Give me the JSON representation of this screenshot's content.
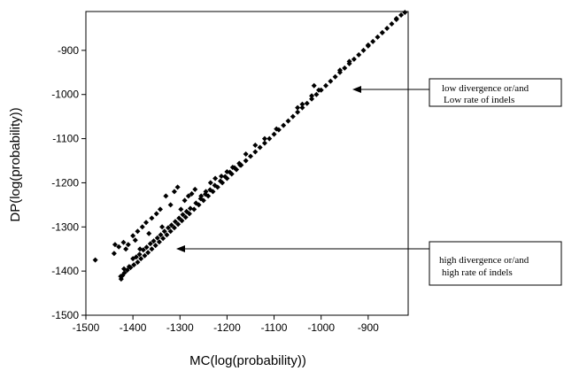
{
  "chart_data": {
    "type": "scatter",
    "xlabel": "MC(log(probability))",
    "ylabel": "DP(log(probability))",
    "xlim": [
      -1500,
      -815
    ],
    "ylim": [
      -1500,
      -812
    ],
    "x_ticks": [
      -1500,
      -1400,
      -1300,
      -1200,
      -1100,
      -1000,
      -900
    ],
    "x_tick_labels": [
      "-1500",
      "-1400",
      "-1300",
      "-1200",
      "-1100",
      "-1000",
      "-900"
    ],
    "y_ticks": [
      -1500,
      -1400,
      -1300,
      -1200,
      -1100,
      -1000,
      -900
    ],
    "y_tick_labels": [
      "-1500",
      "-1400",
      "-1300",
      "-1200",
      "-1100",
      "-1000",
      "-900"
    ],
    "grid": false,
    "marker": "diamond",
    "points": [
      [
        -1425,
        -1418
      ],
      [
        -1422,
        -1410
      ],
      [
        -1418,
        -1404
      ],
      [
        -1412,
        -1398
      ],
      [
        -1405,
        -1392
      ],
      [
        -1398,
        -1386
      ],
      [
        -1390,
        -1380
      ],
      [
        -1383,
        -1372
      ],
      [
        -1375,
        -1365
      ],
      [
        -1368,
        -1358
      ],
      [
        -1360,
        -1350
      ],
      [
        -1352,
        -1342
      ],
      [
        -1344,
        -1334
      ],
      [
        -1336,
        -1326
      ],
      [
        -1328,
        -1318
      ],
      [
        -1320,
        -1310
      ],
      [
        -1312,
        -1302
      ],
      [
        -1304,
        -1294
      ],
      [
        -1296,
        -1286
      ],
      [
        -1288,
        -1278
      ],
      [
        -1280,
        -1270
      ],
      [
        -1270,
        -1260
      ],
      [
        -1260,
        -1250
      ],
      [
        -1250,
        -1240
      ],
      [
        -1240,
        -1230
      ],
      [
        -1230,
        -1220
      ],
      [
        -1220,
        -1210
      ],
      [
        -1210,
        -1200
      ],
      [
        -1200,
        -1190
      ],
      [
        -1190,
        -1180
      ],
      [
        -1180,
        -1170
      ],
      [
        -1170,
        -1160
      ],
      [
        -1160,
        -1150
      ],
      [
        -1150,
        -1140
      ],
      [
        -1140,
        -1130
      ],
      [
        -1130,
        -1120
      ],
      [
        -1120,
        -1110
      ],
      [
        -1110,
        -1100
      ],
      [
        -1100,
        -1090
      ],
      [
        -1090,
        -1080
      ],
      [
        -1080,
        -1070
      ],
      [
        -1070,
        -1060
      ],
      [
        -1060,
        -1050
      ],
      [
        -1050,
        -1040
      ],
      [
        -1040,
        -1030
      ],
      [
        -1030,
        -1020
      ],
      [
        -1020,
        -1010
      ],
      [
        -1010,
        -1000
      ],
      [
        -1000,
        -990
      ],
      [
        -990,
        -980
      ],
      [
        -980,
        -970
      ],
      [
        -970,
        -960
      ],
      [
        -960,
        -950
      ],
      [
        -950,
        -940
      ],
      [
        -940,
        -930
      ],
      [
        -930,
        -920
      ],
      [
        -920,
        -910
      ],
      [
        -910,
        -900
      ],
      [
        -900,
        -890
      ],
      [
        -890,
        -880
      ],
      [
        -880,
        -870
      ],
      [
        -870,
        -860
      ],
      [
        -860,
        -850
      ],
      [
        -850,
        -840
      ],
      [
        -840,
        -830
      ],
      [
        -830,
        -820
      ],
      [
        -822,
        -814
      ],
      [
        -1480,
        -1375
      ],
      [
        -1440,
        -1360
      ],
      [
        -1438,
        -1340
      ],
      [
        -1430,
        -1345
      ],
      [
        -1420,
        -1335
      ],
      [
        -1415,
        -1350
      ],
      [
        -1410,
        -1340
      ],
      [
        -1400,
        -1320
      ],
      [
        -1395,
        -1330
      ],
      [
        -1390,
        -1310
      ],
      [
        -1385,
        -1350
      ],
      [
        -1380,
        -1300
      ],
      [
        -1372,
        -1290
      ],
      [
        -1366,
        -1315
      ],
      [
        -1360,
        -1280
      ],
      [
        -1350,
        -1270
      ],
      [
        -1342,
        -1260
      ],
      [
        -1338,
        -1300
      ],
      [
        -1330,
        -1230
      ],
      [
        -1320,
        -1250
      ],
      [
        -1312,
        -1220
      ],
      [
        -1305,
        -1210
      ],
      [
        -1298,
        -1260
      ],
      [
        -1290,
        -1240
      ],
      [
        -1282,
        -1230
      ],
      [
        -1275,
        -1225
      ],
      [
        -1268,
        -1215
      ],
      [
        -1255,
        -1230
      ],
      [
        -1245,
        -1220
      ],
      [
        -1235,
        -1200
      ],
      [
        -1225,
        -1190
      ],
      [
        -1212,
        -1185
      ],
      [
        -1200,
        -1175
      ],
      [
        -1188,
        -1165
      ],
      [
        -1172,
        -1160
      ],
      [
        -1160,
        -1135
      ],
      [
        -1140,
        -1115
      ],
      [
        -1120,
        -1100
      ],
      [
        -1095,
        -1078
      ],
      [
        -1050,
        -1030
      ],
      [
        -1040,
        -1022
      ],
      [
        -1020,
        -1003
      ],
      [
        -1015,
        -980
      ],
      [
        -1005,
        -990
      ],
      [
        -960,
        -945
      ],
      [
        -940,
        -925
      ],
      [
        -900,
        -888
      ],
      [
        -870,
        -860
      ],
      [
        -840,
        -828
      ],
      [
        -1426,
        -1412
      ],
      [
        -1419,
        -1395
      ],
      [
        -1408,
        -1390
      ],
      [
        -1400,
        -1372
      ],
      [
        -1393,
        -1368
      ],
      [
        -1386,
        -1362
      ],
      [
        -1378,
        -1352
      ],
      [
        -1371,
        -1346
      ],
      [
        -1363,
        -1338
      ],
      [
        -1356,
        -1332
      ],
      [
        -1348,
        -1325
      ],
      [
        -1341,
        -1318
      ],
      [
        -1333,
        -1310
      ],
      [
        -1325,
        -1302
      ],
      [
        -1318,
        -1296
      ],
      [
        -1310,
        -1288
      ],
      [
        -1302,
        -1280
      ],
      [
        -1294,
        -1272
      ],
      [
        -1286,
        -1265
      ],
      [
        -1278,
        -1258
      ],
      [
        -1266,
        -1246
      ],
      [
        -1256,
        -1236
      ],
      [
        -1246,
        -1226
      ],
      [
        -1236,
        -1216
      ],
      [
        -1226,
        -1206
      ],
      [
        -1214,
        -1196
      ],
      [
        -1204,
        -1186
      ],
      [
        -1194,
        -1176
      ],
      [
        -1184,
        -1166
      ],
      [
        -1174,
        -1156
      ]
    ],
    "annotations": [
      {
        "name": "low",
        "lines": [
          "low divergence or/and",
          "Low rate of indels"
        ],
        "target": [
          -1000,
          -978
        ]
      },
      {
        "name": "high",
        "lines": [
          "high divergence or/and",
          "high rate of indels"
        ],
        "target": [
          -1310,
          -1345
        ]
      }
    ]
  }
}
